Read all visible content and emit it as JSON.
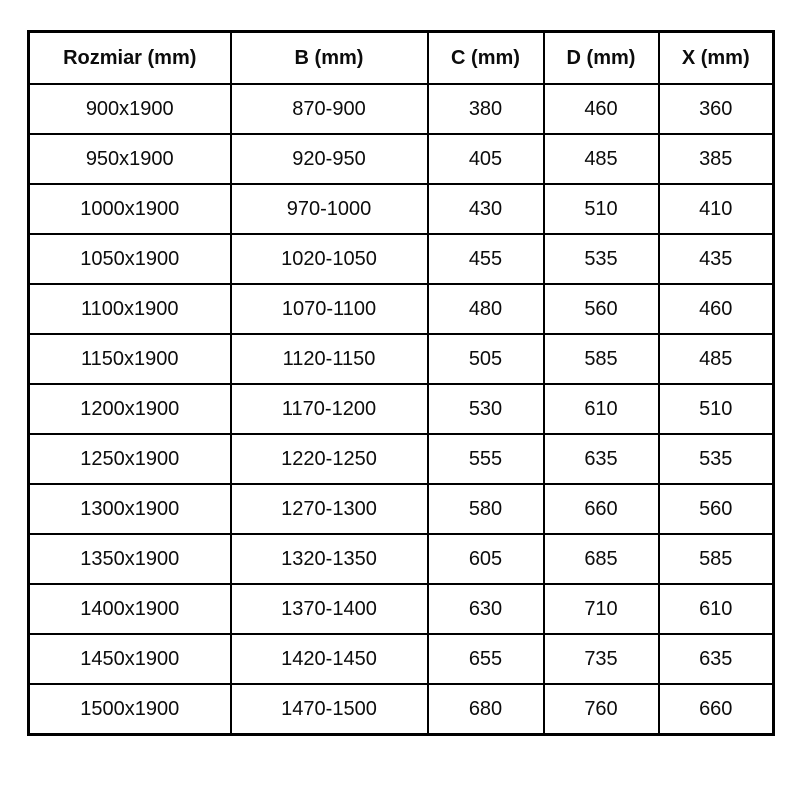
{
  "table": {
    "columns": [
      "Rozmiar (mm)",
      "B (mm)",
      "C (mm)",
      "D (mm)",
      "X (mm)"
    ],
    "rows": [
      [
        "900x1900",
        "870-900",
        "380",
        "460",
        "360"
      ],
      [
        "950x1900",
        "920-950",
        "405",
        "485",
        "385"
      ],
      [
        "1000x1900",
        "970-1000",
        "430",
        "510",
        "410"
      ],
      [
        "1050x1900",
        "1020-1050",
        "455",
        "535",
        "435"
      ],
      [
        "1100x1900",
        "1070-1100",
        "480",
        "560",
        "460"
      ],
      [
        "1150x1900",
        "1120-1150",
        "505",
        "585",
        "485"
      ],
      [
        "1200x1900",
        "1170-1200",
        "530",
        "610",
        "510"
      ],
      [
        "1250x1900",
        "1220-1250",
        "555",
        "635",
        "535"
      ],
      [
        "1300x1900",
        "1270-1300",
        "580",
        "660",
        "560"
      ],
      [
        "1350x1900",
        "1320-1350",
        "605",
        "685",
        "585"
      ],
      [
        "1400x1900",
        "1370-1400",
        "630",
        "710",
        "610"
      ],
      [
        "1450x1900",
        "1420-1450",
        "655",
        "735",
        "635"
      ],
      [
        "1500x1900",
        "1470-1500",
        "680",
        "760",
        "660"
      ]
    ],
    "colors": {
      "border": "#000000",
      "text": "#0c0c0c",
      "background": "#ffffff"
    }
  }
}
